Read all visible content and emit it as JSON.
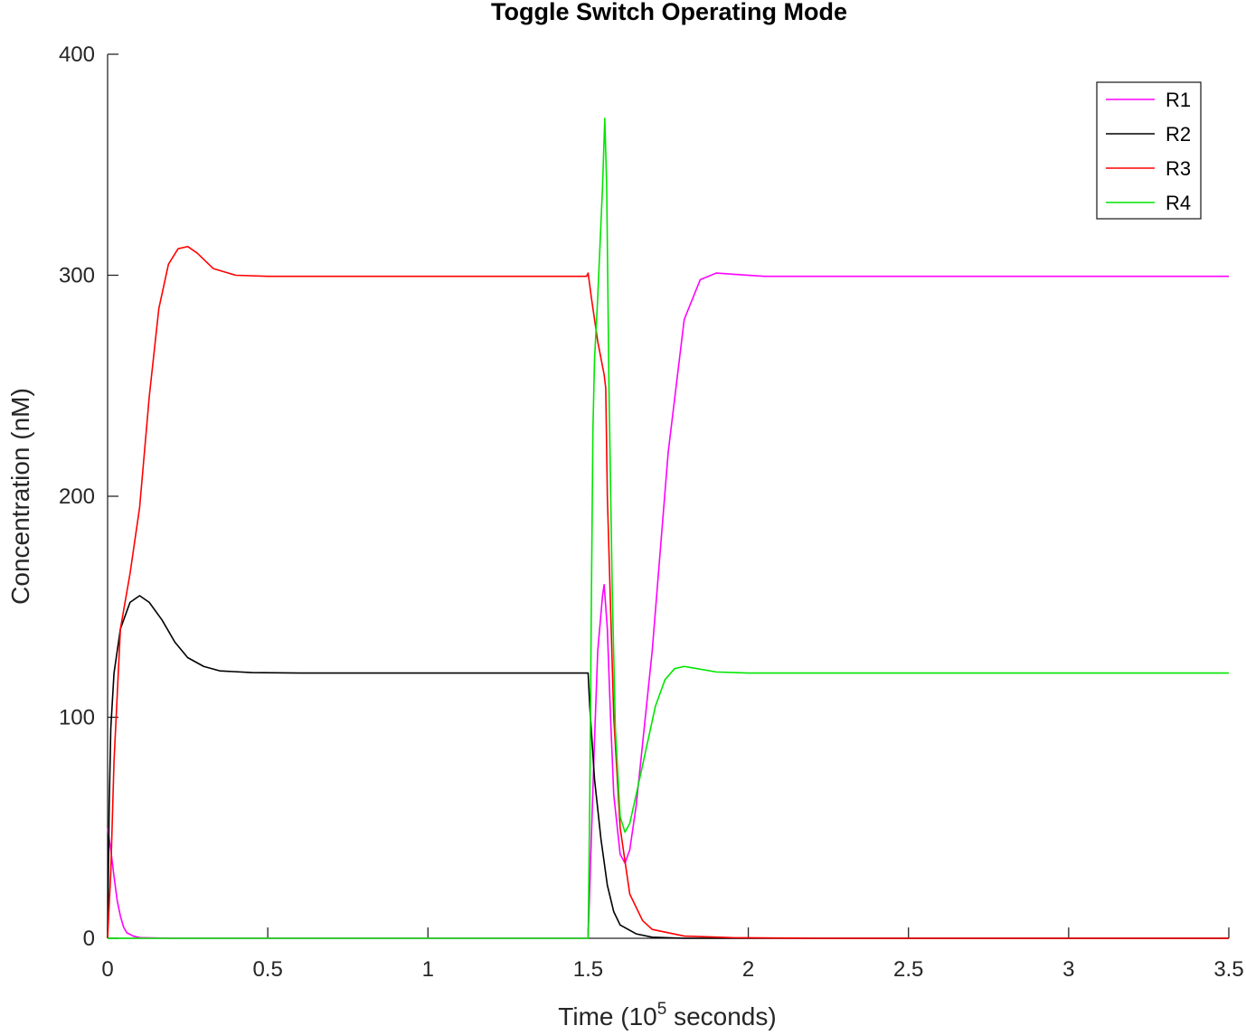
{
  "chart_data": {
    "type": "line",
    "title": "Toggle Switch Operating Mode",
    "xlabel": {
      "prefix": "Time (10",
      "superscript": "5",
      "suffix": " seconds)"
    },
    "ylabel": "Concentration (nM)",
    "xlim": [
      0,
      3.5
    ],
    "ylim": [
      0,
      400
    ],
    "xticks": [
      0,
      0.5,
      1,
      1.5,
      2,
      2.5,
      3,
      3.5
    ],
    "xtick_labels": [
      "0",
      "0.5",
      "1",
      "1.5",
      "2",
      "2.5",
      "3",
      "3.5"
    ],
    "yticks": [
      0,
      100,
      200,
      300,
      400
    ],
    "ytick_labels": [
      "0",
      "100",
      "200",
      "300",
      "400"
    ],
    "grid": false,
    "legend_position": "top-right",
    "series": [
      {
        "name": "R1",
        "color": "#ff00ff",
        "points": [
          [
            0,
            50
          ],
          [
            0.01,
            40
          ],
          [
            0.02,
            28
          ],
          [
            0.03,
            17
          ],
          [
            0.04,
            10
          ],
          [
            0.05,
            5
          ],
          [
            0.06,
            2.5
          ],
          [
            0.08,
            1
          ],
          [
            0.1,
            0.3
          ],
          [
            0.2,
            0
          ],
          [
            1.5,
            0
          ],
          [
            1.52,
            90
          ],
          [
            1.53,
            130
          ],
          [
            1.545,
            155
          ],
          [
            1.55,
            160
          ],
          [
            1.56,
            140
          ],
          [
            1.57,
            100
          ],
          [
            1.58,
            65
          ],
          [
            1.6,
            38
          ],
          [
            1.615,
            34
          ],
          [
            1.63,
            40
          ],
          [
            1.65,
            60
          ],
          [
            1.7,
            130
          ],
          [
            1.75,
            220
          ],
          [
            1.8,
            280
          ],
          [
            1.85,
            298
          ],
          [
            1.9,
            301
          ],
          [
            1.95,
            300.5
          ],
          [
            2.05,
            299.5
          ],
          [
            3.5,
            299.5
          ]
        ]
      },
      {
        "name": "R2",
        "color": "#000000",
        "points": [
          [
            0,
            0
          ],
          [
            0.005,
            60
          ],
          [
            0.01,
            95
          ],
          [
            0.02,
            120
          ],
          [
            0.04,
            140
          ],
          [
            0.07,
            152
          ],
          [
            0.1,
            155
          ],
          [
            0.13,
            152
          ],
          [
            0.17,
            144
          ],
          [
            0.21,
            134
          ],
          [
            0.25,
            127
          ],
          [
            0.3,
            123
          ],
          [
            0.35,
            121
          ],
          [
            0.45,
            120.2
          ],
          [
            0.6,
            120
          ],
          [
            1.495,
            120
          ],
          [
            1.5,
            120
          ],
          [
            1.505,
            105
          ],
          [
            1.52,
            72
          ],
          [
            1.54,
            45
          ],
          [
            1.56,
            24
          ],
          [
            1.58,
            12
          ],
          [
            1.6,
            6
          ],
          [
            1.65,
            2
          ],
          [
            1.7,
            0.5
          ],
          [
            1.8,
            0
          ],
          [
            3.5,
            0
          ]
        ]
      },
      {
        "name": "R3",
        "color": "#ff0000",
        "points": [
          [
            0,
            0
          ],
          [
            0.01,
            30
          ],
          [
            0.02,
            80
          ],
          [
            0.04,
            140
          ],
          [
            0.07,
            165
          ],
          [
            0.1,
            195
          ],
          [
            0.13,
            245
          ],
          [
            0.16,
            285
          ],
          [
            0.19,
            305
          ],
          [
            0.22,
            312
          ],
          [
            0.25,
            313
          ],
          [
            0.28,
            310
          ],
          [
            0.33,
            303
          ],
          [
            0.4,
            300
          ],
          [
            0.5,
            299.5
          ],
          [
            1.495,
            299.5
          ],
          [
            1.5,
            301
          ],
          [
            1.51,
            290
          ],
          [
            1.53,
            270
          ],
          [
            1.55,
            255
          ],
          [
            1.555,
            249
          ],
          [
            1.56,
            200
          ],
          [
            1.58,
            100
          ],
          [
            1.6,
            50
          ],
          [
            1.63,
            20
          ],
          [
            1.67,
            8
          ],
          [
            1.7,
            4
          ],
          [
            1.8,
            1
          ],
          [
            1.95,
            0.3
          ],
          [
            2.2,
            0
          ],
          [
            3.5,
            0
          ]
        ]
      },
      {
        "name": "R4",
        "color": "#00e600",
        "points": [
          [
            0,
            0
          ],
          [
            1.5,
            0
          ],
          [
            1.505,
            60
          ],
          [
            1.51,
            150
          ],
          [
            1.515,
            230
          ],
          [
            1.52,
            262
          ],
          [
            1.53,
            290
          ],
          [
            1.545,
            340
          ],
          [
            1.552,
            371
          ],
          [
            1.558,
            340
          ],
          [
            1.565,
            250
          ],
          [
            1.575,
            160
          ],
          [
            1.585,
            95
          ],
          [
            1.6,
            55
          ],
          [
            1.615,
            48
          ],
          [
            1.63,
            52
          ],
          [
            1.65,
            65
          ],
          [
            1.68,
            85
          ],
          [
            1.71,
            105
          ],
          [
            1.74,
            117
          ],
          [
            1.77,
            122
          ],
          [
            1.8,
            123
          ],
          [
            1.84,
            122
          ],
          [
            1.9,
            120.5
          ],
          [
            2.0,
            120
          ],
          [
            3.5,
            120
          ]
        ]
      }
    ]
  }
}
